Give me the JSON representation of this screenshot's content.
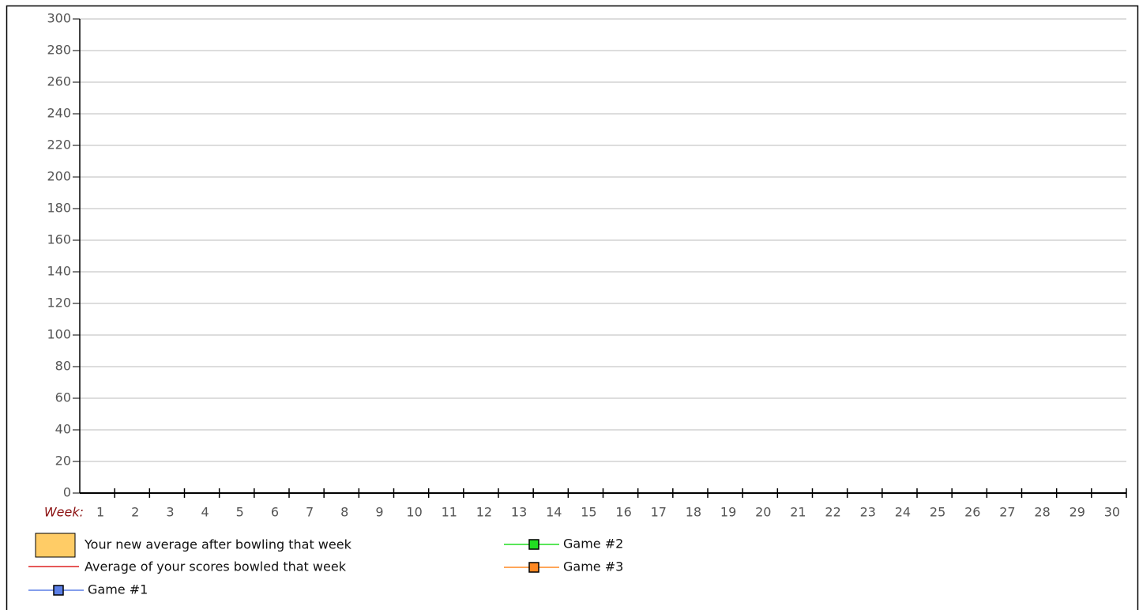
{
  "chart_data": {
    "type": "line",
    "xlabel": "Week:",
    "categories": [
      "1",
      "2",
      "3",
      "4",
      "5",
      "6",
      "7",
      "8",
      "9",
      "10",
      "11",
      "12",
      "13",
      "14",
      "15",
      "16",
      "17",
      "18",
      "19",
      "20",
      "21",
      "22",
      "23",
      "24",
      "25",
      "26",
      "27",
      "28",
      "29",
      "30"
    ],
    "ylim": [
      0,
      300
    ],
    "yticks": [
      0,
      20,
      40,
      60,
      80,
      100,
      120,
      140,
      160,
      180,
      200,
      220,
      240,
      260,
      280,
      300
    ],
    "grid": true,
    "series": [
      {
        "name": "Your new average after bowling that week",
        "kind": "area",
        "color": "#ffcc66",
        "values": [
          null,
          null,
          null,
          null,
          null,
          null,
          null,
          null,
          null,
          null,
          null,
          null,
          null,
          null,
          null,
          null,
          null,
          null,
          null,
          null,
          null,
          null,
          null,
          null,
          null,
          null,
          null,
          null,
          null,
          null
        ]
      },
      {
        "name": "Average of your scores bowled that week",
        "kind": "line",
        "color": "#dd2222",
        "values": [
          null,
          null,
          null,
          null,
          null,
          null,
          null,
          null,
          null,
          null,
          null,
          null,
          null,
          null,
          null,
          null,
          null,
          null,
          null,
          null,
          null,
          null,
          null,
          null,
          null,
          null,
          null,
          null,
          null,
          null
        ]
      },
      {
        "name": "Game #1",
        "kind": "line",
        "marker": true,
        "color": "#5b7fe6",
        "values": [
          null,
          null,
          null,
          null,
          null,
          null,
          null,
          null,
          null,
          null,
          null,
          null,
          null,
          null,
          null,
          null,
          null,
          null,
          null,
          null,
          null,
          null,
          null,
          null,
          null,
          null,
          null,
          null,
          null,
          null
        ]
      },
      {
        "name": "Game #2",
        "kind": "line",
        "marker": true,
        "color": "#22dd22",
        "values": [
          null,
          null,
          null,
          null,
          null,
          null,
          null,
          null,
          null,
          null,
          null,
          null,
          null,
          null,
          null,
          null,
          null,
          null,
          null,
          null,
          null,
          null,
          null,
          null,
          null,
          null,
          null,
          null,
          null,
          null
        ]
      },
      {
        "name": "Game #3",
        "kind": "line",
        "marker": true,
        "color": "#ff8822",
        "values": [
          null,
          null,
          null,
          null,
          null,
          null,
          null,
          null,
          null,
          null,
          null,
          null,
          null,
          null,
          null,
          null,
          null,
          null,
          null,
          null,
          null,
          null,
          null,
          null,
          null,
          null,
          null,
          null,
          null,
          null
        ]
      }
    ]
  }
}
